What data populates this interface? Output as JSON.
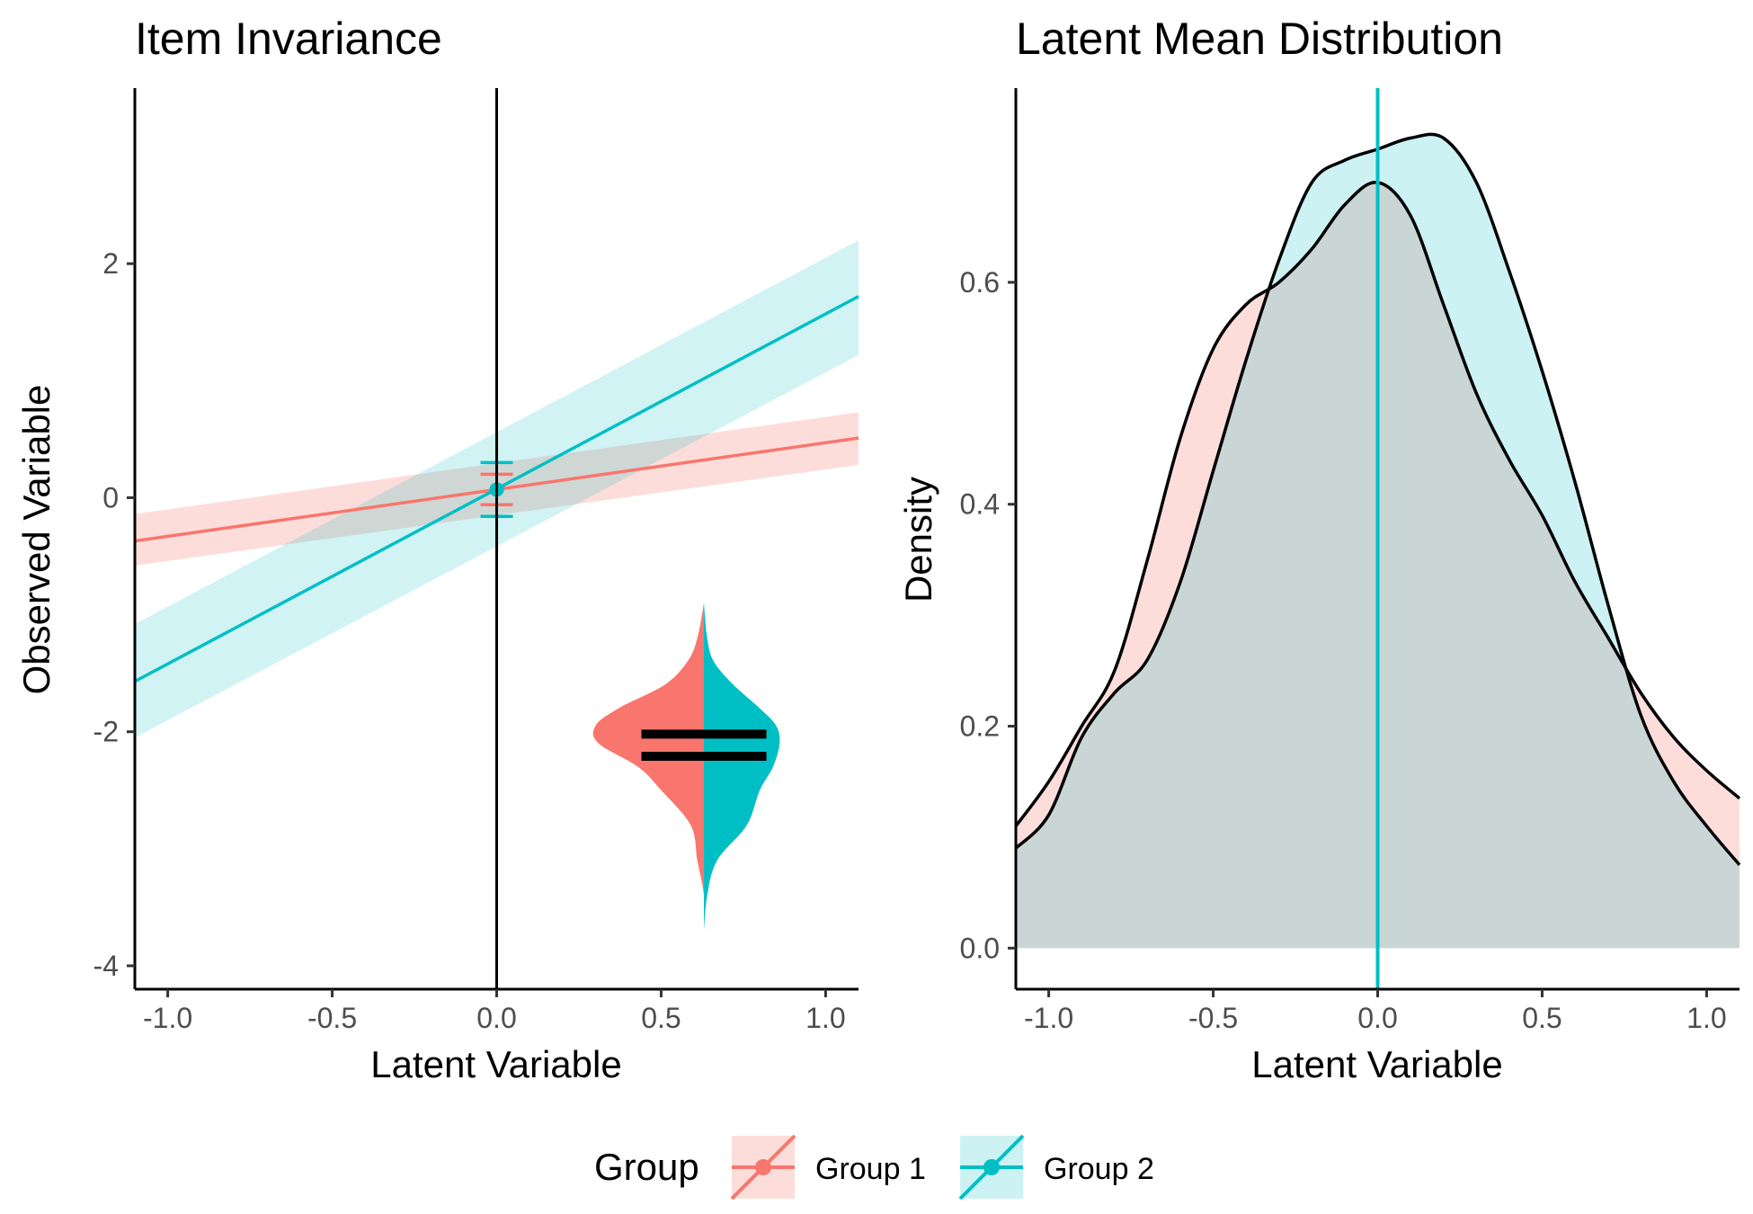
{
  "colors": {
    "group1": "#F8766D",
    "group2": "#00BFC4",
    "axis": "#000000",
    "tick_label": "#4D4D4D",
    "overlap_gray": "#C8CBCB"
  },
  "legend": {
    "title": "Group",
    "entries": [
      "Group 1",
      "Group 2"
    ],
    "position": "bottom"
  },
  "chart_data": [
    {
      "type": "line",
      "title": "Item Invariance",
      "xlabel": "Latent Variable",
      "ylabel": "Observed Variable",
      "xlim": [
        -1.1,
        1.1
      ],
      "ylim": [
        -4.2,
        3.5
      ],
      "xticks": [
        -1.0,
        -0.5,
        0.0,
        0.5,
        1.0
      ],
      "xtick_labels": [
        "-1.0",
        "-0.5",
        "0.0",
        "0.5",
        "1.0"
      ],
      "yticks": [
        2,
        0,
        -2,
        -4
      ],
      "ytick_labels": [
        "2",
        "0",
        "-2",
        "-4"
      ],
      "vline_x": 0,
      "grid": false,
      "series": [
        {
          "name": "Group 1",
          "color": "#F8766D",
          "line_x": [
            -1.1,
            1.1
          ],
          "line_y": [
            -0.37,
            0.51
          ],
          "band_x": [
            -1.1,
            1.1
          ],
          "band_lower": [
            -0.58,
            0.28
          ],
          "band_upper": [
            -0.14,
            0.73
          ],
          "point": {
            "x": 0,
            "y": 0.07
          },
          "errorbar": {
            "lower": -0.06,
            "upper": 0.2
          }
        },
        {
          "name": "Group 2",
          "color": "#00BFC4",
          "line_x": [
            -1.1,
            1.1
          ],
          "line_y": [
            -1.57,
            1.72
          ],
          "band_x": [
            -1.1,
            1.1
          ],
          "band_lower": [
            -2.05,
            1.22
          ],
          "band_upper": [
            -1.08,
            2.2
          ],
          "point": {
            "x": 0,
            "y": 0.07
          },
          "errorbar": {
            "lower": -0.16,
            "upper": 0.3
          }
        }
      ],
      "split_violin": {
        "center_x": 0.63,
        "y": [
          -3.7,
          -3.4,
          -3.1,
          -2.8,
          -2.5,
          -2.3,
          -2.1,
          -1.95,
          -1.8,
          -1.6,
          -1.4,
          -1.2,
          -0.9
        ],
        "left_halfwidth": [
          0,
          0,
          0.02,
          0.04,
          0.13,
          0.2,
          0.32,
          0.33,
          0.26,
          0.12,
          0.05,
          0.02,
          0
        ],
        "right_halfwidth": [
          0,
          0.01,
          0.04,
          0.13,
          0.17,
          0.21,
          0.23,
          0.22,
          0.17,
          0.09,
          0.03,
          0.01,
          0
        ],
        "mean_bars": [
          {
            "y": -2.02,
            "x_from": 0.44,
            "x_to": 0.82
          },
          {
            "y": -2.21,
            "x_from": 0.44,
            "x_to": 0.82
          }
        ]
      }
    },
    {
      "type": "area",
      "title": "Latent Mean Distribution",
      "xlabel": "Latent Variable",
      "ylabel": "Density",
      "xlim": [
        -1.1,
        1.1
      ],
      "ylim": [
        -0.037,
        0.775
      ],
      "xticks": [
        -1.0,
        -0.5,
        0.0,
        0.5,
        1.0
      ],
      "xtick_labels": [
        "-1.0",
        "-0.5",
        "0.0",
        "0.5",
        "1.0"
      ],
      "yticks": [
        0.0,
        0.2,
        0.4,
        0.6
      ],
      "ytick_labels": [
        "0.0",
        "0.2",
        "0.4",
        "0.6"
      ],
      "vline_x": 0,
      "grid": false,
      "x": [
        -1.1,
        -1.0,
        -0.9,
        -0.8,
        -0.7,
        -0.6,
        -0.5,
        -0.4,
        -0.3,
        -0.2,
        -0.1,
        0.0,
        0.1,
        0.2,
        0.3,
        0.4,
        0.5,
        0.6,
        0.7,
        0.8,
        0.9,
        1.0,
        1.1
      ],
      "series": [
        {
          "name": "Group 1",
          "color": "#F8766D",
          "values": [
            0.11,
            0.15,
            0.2,
            0.25,
            0.35,
            0.46,
            0.54,
            0.58,
            0.6,
            0.63,
            0.67,
            0.69,
            0.66,
            0.58,
            0.5,
            0.44,
            0.39,
            0.33,
            0.28,
            0.23,
            0.19,
            0.16,
            0.135
          ]
        },
        {
          "name": "Group 2",
          "color": "#00BFC4",
          "values": [
            0.09,
            0.12,
            0.19,
            0.23,
            0.26,
            0.33,
            0.43,
            0.53,
            0.62,
            0.69,
            0.71,
            0.72,
            0.73,
            0.73,
            0.69,
            0.61,
            0.52,
            0.42,
            0.31,
            0.21,
            0.15,
            0.11,
            0.075
          ]
        }
      ]
    }
  ]
}
